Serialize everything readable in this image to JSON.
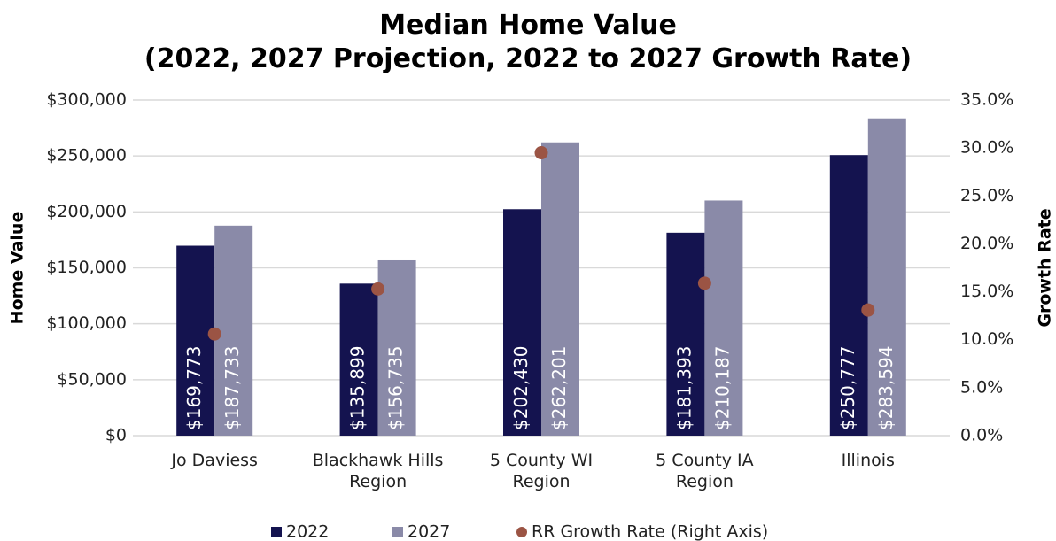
{
  "chart_data": {
    "type": "bar",
    "title": "Median Home Value\n(2022, 2027 Projection, 2022 to 2027 Growth Rate)",
    "y_label": "Home Value",
    "y2_label": "Growth Rate",
    "categories": [
      "Jo Daviess",
      "Blackhawk Hills\nRegion",
      "5 County WI\nRegion",
      "5 County IA\nRegion",
      "Illinois"
    ],
    "series": [
      {
        "name": "2022",
        "type": "bar",
        "color": "#14134f",
        "values": [
          169773,
          135899,
          202430,
          181393,
          250777
        ],
        "value_labels": [
          "$169,773",
          "$135,899",
          "$202,430",
          "$181,393",
          "$250,777"
        ]
      },
      {
        "name": "2027",
        "type": "bar",
        "color": "#8a8aa8",
        "values": [
          187733,
          156735,
          262201,
          210187,
          283594
        ],
        "value_labels": [
          "$187,733",
          "$156,735",
          "$262,201",
          "$210,187",
          "$283,594"
        ]
      },
      {
        "name": "RR Growth Rate (Right Axis)",
        "type": "scatter",
        "axis": "y2",
        "color": "#9b5444",
        "values": [
          10.6,
          15.3,
          29.5,
          15.9,
          13.1
        ]
      }
    ],
    "ylim": [
      0,
      300000
    ],
    "yticks": [
      {
        "value": 0,
        "label": "$0"
      },
      {
        "value": 50000,
        "label": "$50,000"
      },
      {
        "value": 100000,
        "label": "$100,000"
      },
      {
        "value": 150000,
        "label": "$150,000"
      },
      {
        "value": 200000,
        "label": "$200,000"
      },
      {
        "value": 250000,
        "label": "$250,000"
      },
      {
        "value": 300000,
        "label": "$300,000"
      }
    ],
    "y2lim": [
      0,
      35
    ],
    "y2ticks": [
      {
        "value": 0,
        "label": "0.0%"
      },
      {
        "value": 5,
        "label": "5.0%"
      },
      {
        "value": 10,
        "label": "10.0%"
      },
      {
        "value": 15,
        "label": "15.0%"
      },
      {
        "value": 20,
        "label": "20.0%"
      },
      {
        "value": 25,
        "label": "25.0%"
      },
      {
        "value": 30,
        "label": "30.0%"
      },
      {
        "value": 35,
        "label": "35.0%"
      }
    ],
    "grid": true,
    "legend": "bottom"
  }
}
